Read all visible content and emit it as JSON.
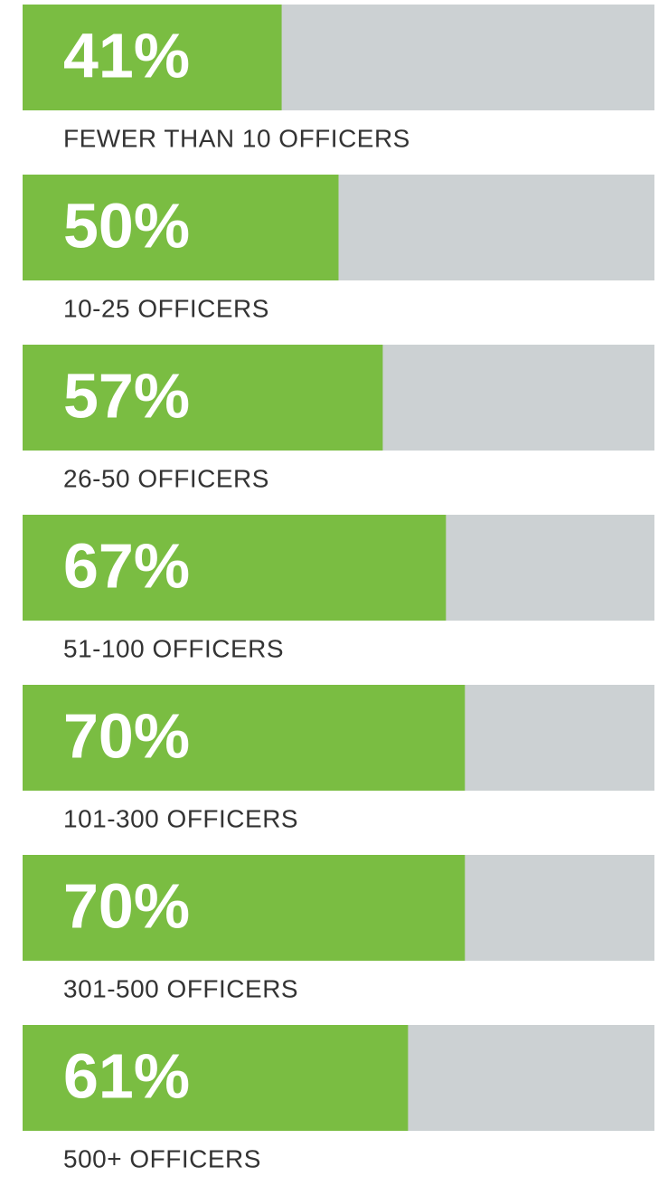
{
  "chart_data": {
    "type": "bar",
    "orientation": "horizontal",
    "categories": [
      "FEWER THAN 10 OFFICERS",
      "10-25 OFFICERS",
      "26-50 OFFICERS",
      "51-100 OFFICERS",
      "101-300 OFFICERS",
      "301-500 OFFICERS",
      "500+ OFFICERS"
    ],
    "values": [
      41,
      50,
      57,
      67,
      70,
      70,
      61
    ],
    "value_labels": [
      "41%",
      "50%",
      "57%",
      "67%",
      "70%",
      "70%",
      "61%"
    ],
    "color": "#7abd42",
    "track_color": "#ccd1d3",
    "xlim": [
      0,
      100
    ]
  }
}
